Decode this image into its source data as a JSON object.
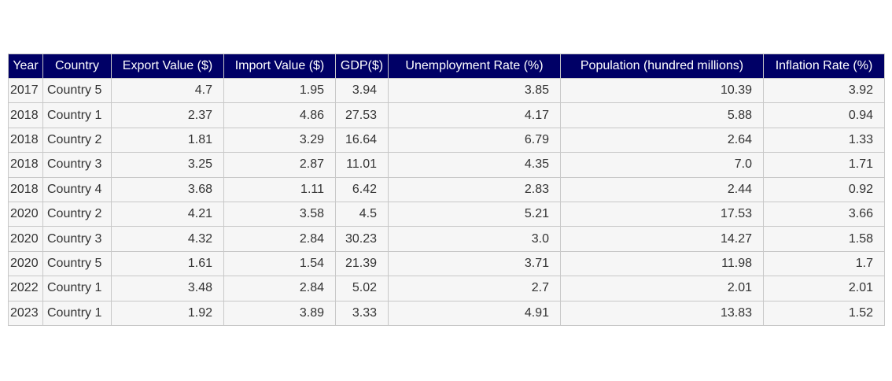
{
  "chart_data": {
    "type": "table",
    "columns": [
      "Year",
      "Country",
      "Export Value ($)",
      "Import Value ($)",
      "GDP($)",
      "Unemployment Rate (%)",
      "Population (hundred millions)",
      "Inflation Rate (%)"
    ],
    "rows": [
      [
        "2017",
        "Country 5",
        "4.7",
        "1.95",
        "3.94",
        "3.85",
        "10.39",
        "3.92"
      ],
      [
        "2018",
        "Country 1",
        "2.37",
        "4.86",
        "27.53",
        "4.17",
        "5.88",
        "0.94"
      ],
      [
        "2018",
        "Country 2",
        "1.81",
        "3.29",
        "16.64",
        "6.79",
        "2.64",
        "1.33"
      ],
      [
        "2018",
        "Country 3",
        "3.25",
        "2.87",
        "11.01",
        "4.35",
        "7.0",
        "1.71"
      ],
      [
        "2018",
        "Country 4",
        "3.68",
        "1.11",
        "6.42",
        "2.83",
        "2.44",
        "0.92"
      ],
      [
        "2020",
        "Country 2",
        "4.21",
        "3.58",
        "4.5",
        "5.21",
        "17.53",
        "3.66"
      ],
      [
        "2020",
        "Country 3",
        "4.32",
        "2.84",
        "30.23",
        "3.0",
        "14.27",
        "1.58"
      ],
      [
        "2020",
        "Country 5",
        "1.61",
        "1.54",
        "21.39",
        "3.71",
        "11.98",
        "1.7"
      ],
      [
        "2022",
        "Country 1",
        "3.48",
        "2.84",
        "5.02",
        "2.7",
        "2.01",
        "2.01"
      ],
      [
        "2023",
        "Country 1",
        "1.92",
        "3.89",
        "3.33",
        "4.91",
        "13.83",
        "1.52"
      ]
    ],
    "header_color": "#000066",
    "header_text_color": "#ffffff",
    "cell_color": "#f6f6f6",
    "border_color": "#c8c8c8"
  }
}
